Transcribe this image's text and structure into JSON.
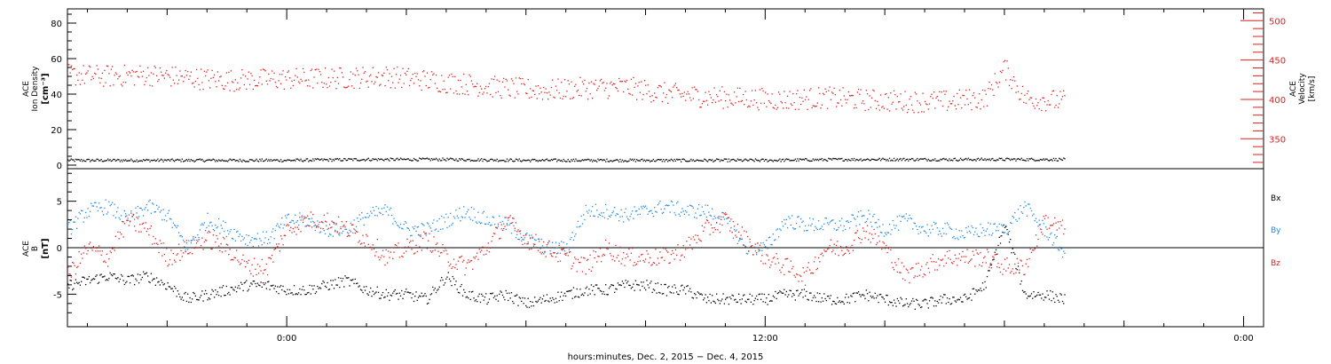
{
  "chart_data": [
    {
      "type": "scatter",
      "panel": "top",
      "ylabel_left": [
        "ACE",
        "Ion Density",
        "[cm⁻³]"
      ],
      "ylabel_right": [
        "ACE",
        "Velocity",
        "[km/s]"
      ],
      "ylim_left": [
        -2,
        88
      ],
      "ylim_right": [
        312,
        515
      ],
      "left_ticks": [
        "0",
        "20",
        "40",
        "60",
        "80"
      ],
      "right_ticks": [
        "350",
        "400",
        "450",
        "500"
      ],
      "x_ticks": [
        "0:00",
        "12:00",
        "0:00"
      ],
      "xlabel": "hours:minutes, Dec. 2, 2015 − Dec. 4, 2015",
      "xlim_hours": [
        -5.5,
        24.5
      ],
      "series": [
        {
          "name": "Ion Density",
          "axis": "left",
          "color": "#000000",
          "x": [
            -5.5,
            -4,
            -2,
            -1,
            0,
            2,
            4,
            6,
            8,
            10,
            12,
            14,
            16,
            17,
            18,
            19.5
          ],
          "y": [
            3,
            3,
            3,
            3,
            3,
            3.5,
            3.5,
            3,
            3,
            3,
            3,
            3.5,
            3.5,
            3.5,
            3.5,
            3.5
          ]
        },
        {
          "name": "Velocity",
          "axis": "right",
          "color": "#e01f1f",
          "x": [
            -5.5,
            -4.5,
            -3.5,
            -2.5,
            -1.5,
            -0.5,
            0.5,
            1.5,
            2.5,
            3.5,
            4.5,
            5.5,
            6.5,
            7.5,
            8.5,
            9.5,
            10.5,
            11.5,
            12.5,
            13.5,
            14.5,
            15.5,
            16.5,
            17,
            17.5,
            18,
            18.5,
            19.5
          ],
          "y": [
            432,
            430,
            432,
            428,
            425,
            426,
            427,
            428,
            430,
            425,
            420,
            415,
            412,
            415,
            416,
            408,
            404,
            402,
            400,
            403,
            400,
            398,
            398,
            400,
            402,
            440,
            402,
            398
          ]
        }
      ]
    },
    {
      "type": "scatter",
      "panel": "bottom",
      "ylabel_left": [
        "ACE",
        "B",
        "[nT]"
      ],
      "ylim": [
        -8.5,
        8.5
      ],
      "left_ticks": [
        "-5",
        "0",
        "5"
      ],
      "legend": [
        "Bx",
        "By",
        "Bz"
      ],
      "legend_colors": [
        "#000000",
        "#1e88e5",
        "#e01f1f"
      ],
      "series": [
        {
          "name": "Bx",
          "color": "#000000",
          "x": [
            -5.5,
            -5,
            -4.5,
            -4,
            -3.5,
            -3,
            -2.5,
            -2,
            -1.5,
            -1,
            -0.5,
            0,
            0.5,
            1,
            1.5,
            2,
            2.5,
            3,
            3.5,
            4,
            4.5,
            5,
            5.5,
            6,
            6.5,
            7,
            7.5,
            8,
            8.5,
            9,
            9.5,
            10,
            10.5,
            11,
            11.5,
            12,
            12.5,
            13,
            13.5,
            14,
            14.5,
            15,
            15.5,
            16,
            16.5,
            17,
            17.5,
            18,
            18.5,
            19,
            19.5
          ],
          "y": [
            -4,
            -3.5,
            -3,
            -3.5,
            -3,
            -4,
            -5.5,
            -5,
            -4.5,
            -4,
            -4,
            -4.5,
            -4.5,
            -4,
            -3.5,
            -4.5,
            -5,
            -5,
            -5.5,
            -3,
            -5,
            -5.5,
            -5,
            -6,
            -5.5,
            -5,
            -4.5,
            -4.5,
            -4,
            -4,
            -4.5,
            -4.5,
            -5.5,
            -5.5,
            -5.5,
            -5.5,
            -5,
            -5,
            -5.5,
            -5.5,
            -5,
            -5.5,
            -6,
            -6,
            -5.5,
            -5.5,
            -4,
            2.5,
            -5,
            -5,
            -5.5
          ]
        },
        {
          "name": "By",
          "color": "#1e88e5",
          "x": [
            -5.5,
            -5,
            -4.5,
            -4,
            -3.5,
            -3,
            -2.5,
            -2,
            -1.5,
            -1,
            -0.5,
            0,
            0.5,
            1,
            1.5,
            2,
            2.5,
            3,
            3.5,
            4,
            4.5,
            5,
            5.5,
            6,
            6.5,
            7,
            7.5,
            8,
            8.5,
            9,
            9.5,
            10,
            10.5,
            11,
            11.5,
            12,
            12.5,
            13,
            13.5,
            14,
            14.5,
            15,
            15.5,
            16,
            16.5,
            17,
            17.5,
            18,
            18.5,
            19,
            19.5
          ],
          "y": [
            2,
            4,
            4.5,
            3,
            4.5,
            3.5,
            0,
            3,
            2,
            1,
            1,
            3,
            3,
            2,
            2,
            3.5,
            4,
            2,
            2,
            3,
            4,
            3,
            2.5,
            1,
            0,
            0,
            4,
            4,
            3.5,
            4,
            4.5,
            4,
            4,
            3,
            0,
            0,
            3,
            2.5,
            2.5,
            2.5,
            3.5,
            2,
            3,
            2,
            2,
            1.5,
            2,
            2,
            4.5,
            2,
            -0.5
          ]
        },
        {
          "name": "Bz",
          "color": "#e01f1f",
          "x": [
            -5.5,
            -5,
            -4.5,
            -4,
            -3.5,
            -3,
            -2.5,
            -2,
            -1.5,
            -1,
            -0.5,
            0,
            0.5,
            1,
            1.5,
            2,
            2.5,
            3,
            3.5,
            4,
            4.5,
            5,
            5.5,
            6,
            6.5,
            7,
            7.5,
            8,
            8.5,
            9,
            9.5,
            10,
            10.5,
            11,
            11.5,
            12,
            12.5,
            13,
            13.5,
            14,
            14.5,
            15,
            15.5,
            16,
            16.5,
            17,
            17.5,
            18,
            18.5,
            19,
            19.5
          ],
          "y": [
            -3,
            0,
            -1,
            3,
            2,
            -1,
            0,
            1,
            0,
            -2,
            -2,
            2,
            3,
            3,
            2,
            1,
            -1,
            0,
            1,
            -1,
            -2,
            0,
            3,
            1,
            0,
            -1,
            -2,
            0,
            -1,
            -1,
            -1,
            0,
            2,
            3,
            1,
            -1,
            -2,
            -3,
            0,
            0,
            2,
            0,
            -3,
            -2,
            -1,
            -1,
            -1,
            -2,
            -2,
            3,
            2
          ]
        }
      ]
    }
  ]
}
